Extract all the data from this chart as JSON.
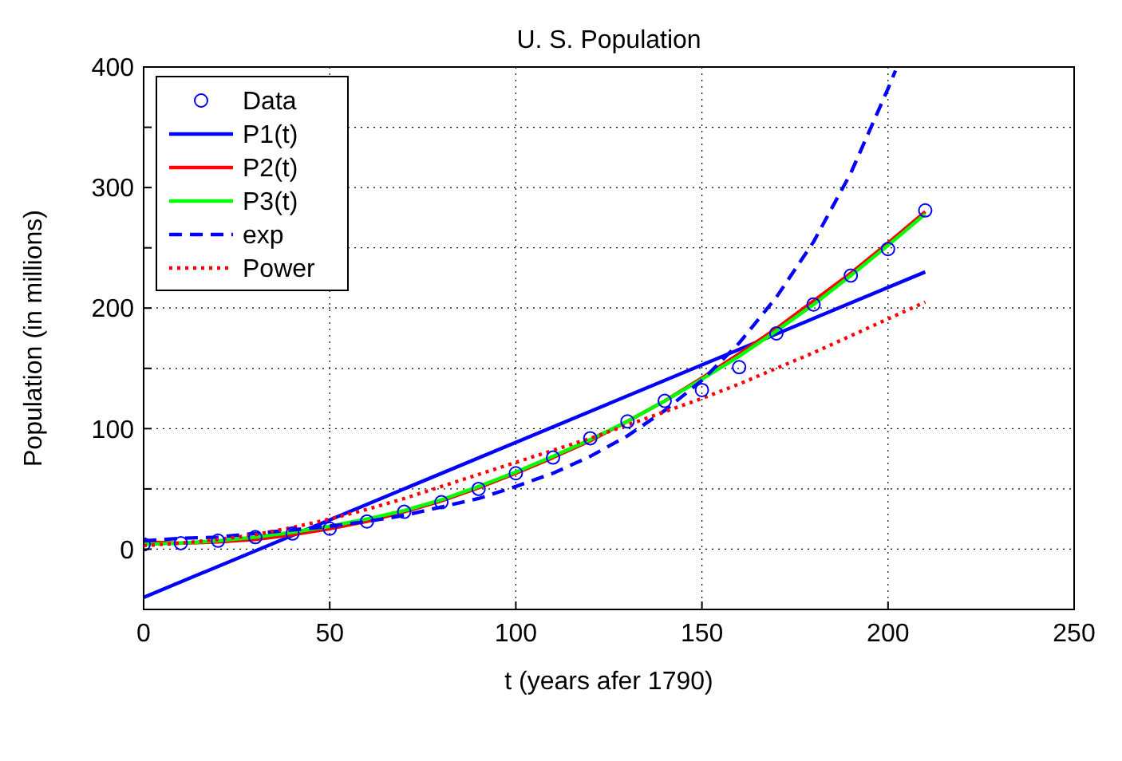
{
  "chart_data": {
    "type": "line",
    "title": "U. S. Population",
    "xlabel": "t (years afer 1790)",
    "ylabel": "Population (in millions)",
    "xlim": [
      0,
      250
    ],
    "ylim": [
      -50,
      400
    ],
    "xticks": [
      0,
      50,
      100,
      150,
      200,
      250
    ],
    "yticks": [
      {
        "value": -50,
        "label": null
      },
      0,
      {
        "value": 50,
        "label": null
      },
      100,
      {
        "value": 150,
        "label": null
      },
      200,
      {
        "value": 250,
        "label": null
      },
      300,
      {
        "value": 350,
        "label": null
      },
      400
    ],
    "grid": true,
    "legend": "top left",
    "x": [
      0,
      10,
      20,
      30,
      40,
      50,
      60,
      70,
      80,
      90,
      100,
      110,
      120,
      130,
      140,
      150,
      160,
      170,
      180,
      190,
      200,
      210
    ],
    "series": [
      {
        "name": "Data",
        "type": "scatter",
        "marker": "circle",
        "color": "#0000ff",
        "values": [
          4,
          5,
          7,
          10,
          13,
          17,
          23,
          31,
          39,
          50,
          63,
          76,
          92,
          106,
          123,
          132,
          151,
          179,
          203,
          227,
          249,
          281
        ]
      },
      {
        "name": "P1(t)",
        "color": "#0000ff",
        "line_style": "solid",
        "x": [
          0,
          210
        ],
        "values": [
          -40,
          230
        ]
      },
      {
        "name": "P2(t)",
        "color": "#ff0000",
        "line_style": "solid",
        "values": [
          6,
          5,
          6,
          8,
          12,
          17,
          23,
          31,
          40,
          51,
          63,
          76,
          90,
          106,
          123,
          142,
          162,
          183,
          206,
          229,
          254,
          280
        ]
      },
      {
        "name": "P3(t)",
        "color": "#00ff00",
        "line_style": "solid",
        "values": [
          4,
          5,
          7,
          10,
          14,
          19,
          25,
          32,
          41,
          52,
          64,
          77,
          91,
          106,
          123,
          141,
          160,
          181,
          203,
          227,
          252,
          278
        ]
      },
      {
        "name": "exp",
        "color": "#0000ff",
        "line_style": "dashed",
        "x": [
          0,
          10,
          20,
          30,
          40,
          50,
          60,
          70,
          80,
          90,
          100,
          110,
          120,
          130,
          140,
          150,
          160,
          170,
          180,
          190,
          200,
          202
        ],
        "values": [
          7,
          9,
          10,
          13,
          16,
          19,
          23,
          28,
          35,
          42,
          52,
          63,
          77,
          94,
          115,
          140,
          171,
          209,
          255,
          312,
          382,
          397
        ]
      },
      {
        "name": "Power",
        "color": "#ff0000",
        "line_style": "dotted",
        "values": [
          3,
          5,
          8,
          12,
          18,
          25,
          33,
          42,
          52,
          62,
          72,
          82,
          92,
          103,
          114,
          125,
          137,
          150,
          163,
          177,
          191,
          205
        ]
      }
    ]
  }
}
